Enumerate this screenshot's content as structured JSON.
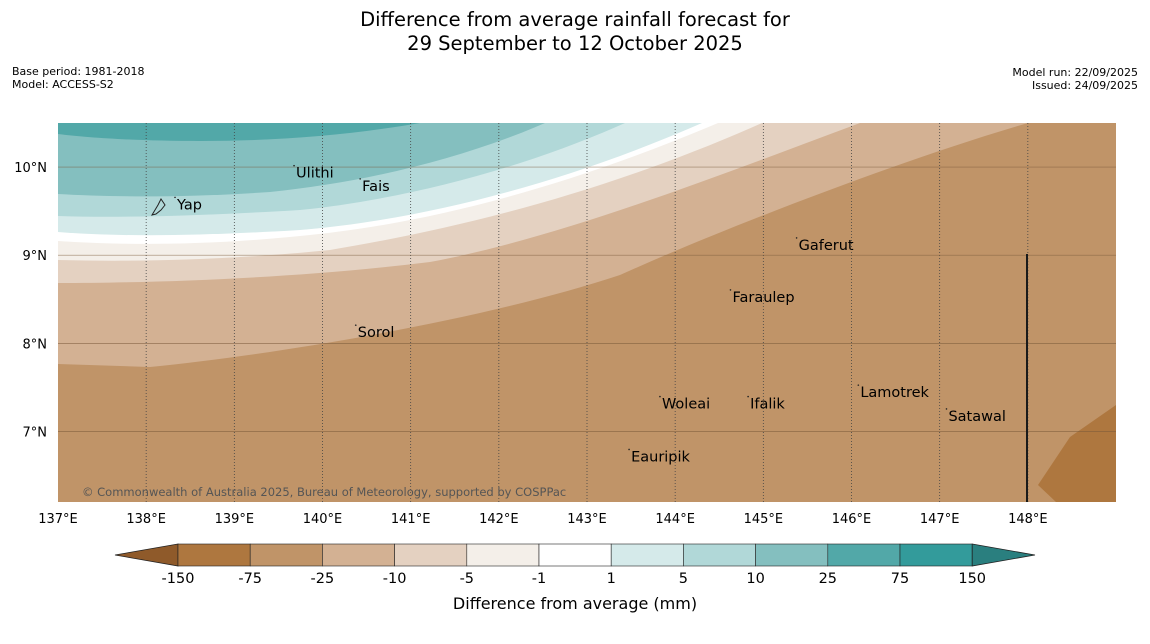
{
  "title": {
    "line1": "Difference from average rainfall forecast for",
    "line2": "29 September to 12 October 2025"
  },
  "meta_left": {
    "base_period": "Base period: 1981-2018",
    "model": "Model: ACCESS-S2"
  },
  "meta_right": {
    "model_run": "Model run: 22/09/2025",
    "issued": "Issued: 24/09/2025"
  },
  "map": {
    "lon_range": [
      137,
      149
    ],
    "lat_range": [
      6.2,
      10.5
    ],
    "lon_ticks": [
      "137°E",
      "138°E",
      "139°E",
      "140°E",
      "141°E",
      "142°E",
      "143°E",
      "144°E",
      "145°E",
      "146°E",
      "147°E",
      "148°E"
    ],
    "lat_ticks": [
      "10°N",
      "9°N",
      "8°N",
      "7°N"
    ],
    "copyright": "© Commonwealth of Australia 2025, Bureau of Meteorology, supported by COSPPac",
    "places": [
      {
        "name": "Yap",
        "lon": 138.35,
        "lat": 9.52
      },
      {
        "name": "Ulithi",
        "lon": 139.7,
        "lat": 9.88
      },
      {
        "name": "Fais",
        "lon": 140.45,
        "lat": 9.73
      },
      {
        "name": "Gaferut",
        "lon": 145.4,
        "lat": 9.06
      },
      {
        "name": "Faraulep",
        "lon": 144.65,
        "lat": 8.47
      },
      {
        "name": "Sorol",
        "lon": 140.4,
        "lat": 8.07
      },
      {
        "name": "Woleai",
        "lon": 143.85,
        "lat": 7.26
      },
      {
        "name": "Ifalik",
        "lon": 144.85,
        "lat": 7.26
      },
      {
        "name": "Lamotrek",
        "lon": 146.1,
        "lat": 7.39
      },
      {
        "name": "Satawal",
        "lon": 147.1,
        "lat": 7.12
      },
      {
        "name": "Eauripik",
        "lon": 143.5,
        "lat": 6.66
      }
    ],
    "zone_colors": {
      "z75_150": "#52a8a8",
      "z25_75": "#84bfbf",
      "z10_25": "#b1d8d8",
      "z5_10": "#d5eaea",
      "z1_5": "#ffffff",
      "zm1_1": "#f4efe9",
      "zm5_m1": "#e4d1c1",
      "zm10_m5": "#d3b193",
      "zm25_m10": "#c09468",
      "zm75_m25": "#ae773f"
    }
  },
  "colorbar": {
    "title": "Difference from average (mm)",
    "tick_labels": [
      "-150",
      "-75",
      "-25",
      "-10",
      "-5",
      "-1",
      "1",
      "5",
      "10",
      "25",
      "75",
      "150"
    ],
    "colors": [
      "#ae773f",
      "#c09468",
      "#d3b193",
      "#e4d1c1",
      "#f4efe9",
      "#ffffff",
      "#d5eaea",
      "#b1d8d8",
      "#84bfbf",
      "#52a8a8",
      "#339b9b"
    ],
    "low_extend_color": "#8f5a2a",
    "high_extend_color": "#2a7f7f"
  }
}
